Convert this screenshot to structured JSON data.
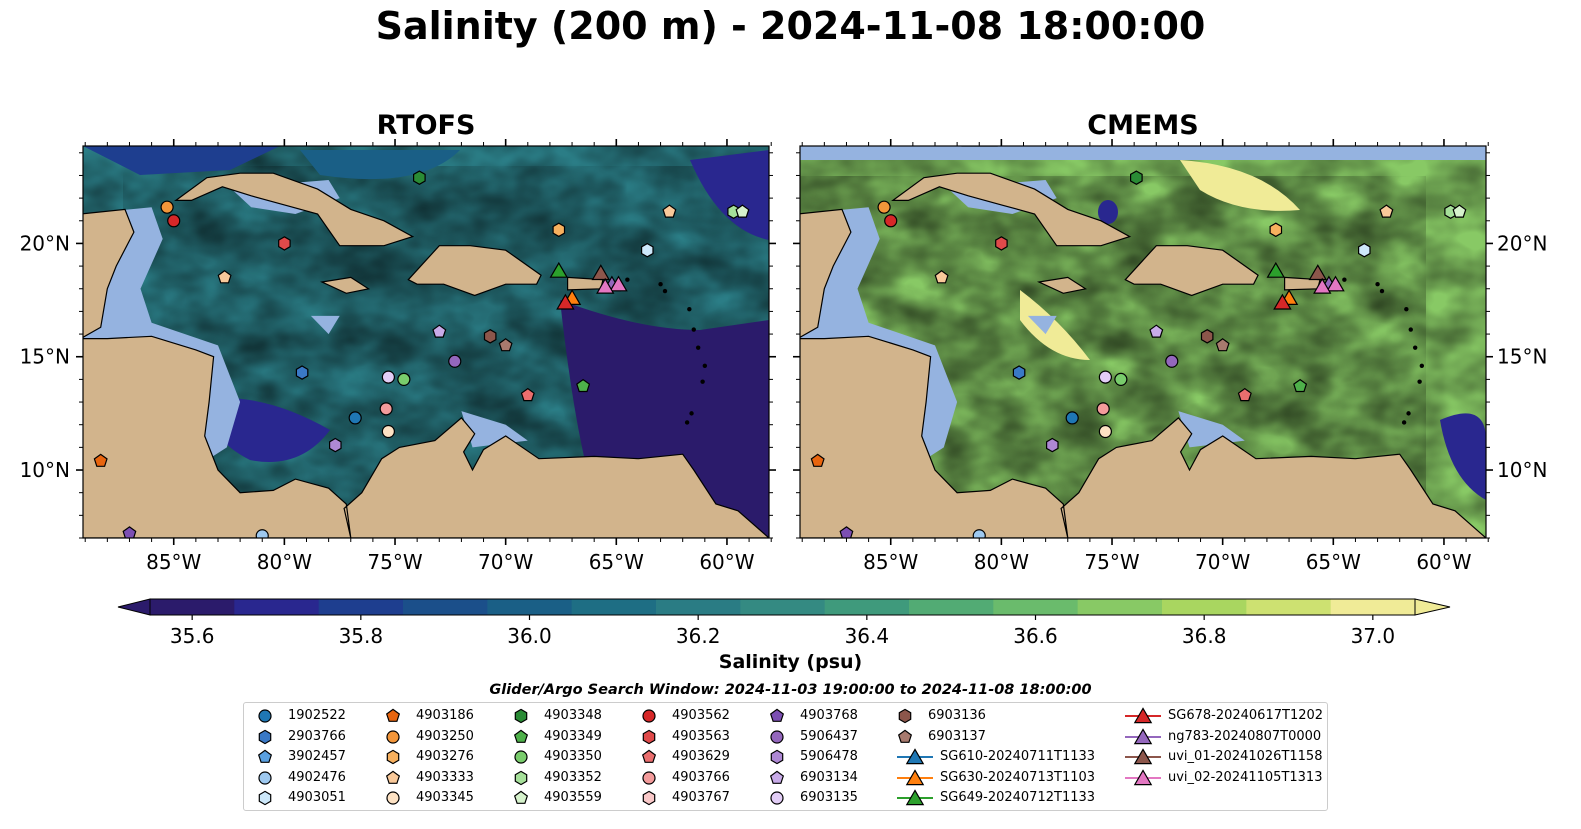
{
  "figure": {
    "title": "Salinity (200 m) - 2024-11-08 18:00:00",
    "panels": [
      {
        "title": "RTOFS"
      },
      {
        "title": "CMEMS"
      }
    ],
    "lon_labels": [
      "85°W",
      "80°W",
      "75°W",
      "70°W",
      "65°W",
      "60°W"
    ],
    "lat_labels": [
      "20°N",
      "15°N",
      "10°N"
    ],
    "colorbar": {
      "label": "Salinity (psu)",
      "ticks": [
        "35.6",
        "35.8",
        "36.0",
        "36.2",
        "36.4",
        "36.6",
        "36.8",
        "37.0"
      ],
      "range": [
        35.55,
        37.05
      ],
      "colormap": "summer-like deep blue → teal → green → yellow",
      "colors": [
        "#2b1b6b",
        "#29278f",
        "#1e3e8f",
        "#1b4f8a",
        "#1a5f86",
        "#1e6e84",
        "#2a7c84",
        "#348a82",
        "#3f9a7c",
        "#52ab74",
        "#6abb6c",
        "#88c965",
        "#a9d660",
        "#cde171",
        "#f0eb97"
      ]
    },
    "search_window": "Glider/Argo Search Window: 2024-11-03 19:00:00 to 2024-11-08 18:00:00"
  },
  "map_colors": {
    "land": "#d2b48c",
    "shelf": "#95b3e0",
    "deep_low": "#2b1b6b"
  },
  "legend": {
    "items": [
      {
        "label": "1902522",
        "marker": "circle",
        "color": "#1f77b4"
      },
      {
        "label": "2903766",
        "marker": "hexagon",
        "color": "#3a79c6"
      },
      {
        "label": "3902457",
        "marker": "pentagon",
        "color": "#5aa0e0"
      },
      {
        "label": "4902476",
        "marker": "circle",
        "color": "#9ec9f0"
      },
      {
        "label": "4903051",
        "marker": "hexagon",
        "color": "#cde8fa"
      },
      {
        "label": "4903186",
        "marker": "pentagon",
        "color": "#e8650f"
      },
      {
        "label": "4903250",
        "marker": "circle",
        "color": "#f3963a"
      },
      {
        "label": "4903276",
        "marker": "hexagon",
        "color": "#f7b05e"
      },
      {
        "label": "4903333",
        "marker": "pentagon",
        "color": "#f9c99a"
      },
      {
        "label": "4903345",
        "marker": "circle",
        "color": "#fde2c4"
      },
      {
        "label": "4903348",
        "marker": "hexagon",
        "color": "#2a8b35"
      },
      {
        "label": "4903349",
        "marker": "pentagon",
        "color": "#4eb04a"
      },
      {
        "label": "4903350",
        "marker": "circle",
        "color": "#79cc6c"
      },
      {
        "label": "4903352",
        "marker": "hexagon",
        "color": "#a6e09a"
      },
      {
        "label": "4903559",
        "marker": "pentagon",
        "color": "#d6f2cc"
      },
      {
        "label": "4903562",
        "marker": "circle",
        "color": "#d62728"
      },
      {
        "label": "4903563",
        "marker": "hexagon",
        "color": "#e04a4a"
      },
      {
        "label": "4903629",
        "marker": "pentagon",
        "color": "#ea6e6e"
      },
      {
        "label": "4903766",
        "marker": "circle",
        "color": "#f39b9b"
      },
      {
        "label": "4903767",
        "marker": "hexagon",
        "color": "#f9c8c8"
      },
      {
        "label": "4903768",
        "marker": "pentagon",
        "color": "#7c4fb3"
      },
      {
        "label": "5906437",
        "marker": "circle",
        "color": "#9467bd"
      },
      {
        "label": "5906478",
        "marker": "hexagon",
        "color": "#ae88d4"
      },
      {
        "label": "6903134",
        "marker": "pentagon",
        "color": "#c8abe8"
      },
      {
        "label": "6903135",
        "marker": "circle",
        "color": "#e2cdf6"
      },
      {
        "label": "6903136",
        "marker": "hexagon",
        "color": "#8c564b"
      },
      {
        "label": "6903137",
        "marker": "pentagon",
        "color": "#a87a6e"
      },
      {
        "label": "SG610-20240711T1133",
        "marker": "triangle-line",
        "color": "#1f77b4"
      },
      {
        "label": "SG630-20240713T1103",
        "marker": "triangle-line",
        "color": "#ff7f0e"
      },
      {
        "label": "SG649-20240712T1133",
        "marker": "triangle-line",
        "color": "#2ca02c"
      },
      {
        "label": "SG678-20240617T1202",
        "marker": "triangle-line",
        "color": "#d62728"
      },
      {
        "label": "ng783-20240807T0000",
        "marker": "triangle-line",
        "color": "#9467bd"
      },
      {
        "label": "uvi_01-20241026T1158",
        "marker": "triangle-line",
        "color": "#8c564b"
      },
      {
        "label": "uvi_02-20241105T1313",
        "marker": "triangle-line",
        "color": "#e377c2"
      }
    ]
  },
  "observations": [
    {
      "id": "4903186",
      "lon": -88.3,
      "lat": 10.4
    },
    {
      "id": "4903250",
      "lon": -85.3,
      "lat": 21.6
    },
    {
      "id": "4903562",
      "lon": -85.0,
      "lat": 21.0
    },
    {
      "id": "4903333",
      "lon": -82.7,
      "lat": 18.5
    },
    {
      "id": "4903563",
      "lon": -80.0,
      "lat": 20.0
    },
    {
      "id": "4903348",
      "lon": -73.9,
      "lat": 22.9
    },
    {
      "id": "4903276",
      "lon": -67.6,
      "lat": 20.6
    },
    {
      "id": "6903134",
      "lon": -73.0,
      "lat": 16.1
    },
    {
      "id": "6903136",
      "lon": -70.7,
      "lat": 15.9
    },
    {
      "id": "6903137",
      "lon": -70.0,
      "lat": 15.5
    },
    {
      "id": "5906437",
      "lon": -72.3,
      "lat": 14.8
    },
    {
      "id": "2903766",
      "lon": -79.2,
      "lat": 14.3
    },
    {
      "id": "6903135",
      "lon": -75.3,
      "lat": 14.1
    },
    {
      "id": "4903350",
      "lon": -74.6,
      "lat": 14.0
    },
    {
      "id": "4903766",
      "lon": -75.4,
      "lat": 12.7
    },
    {
      "id": "4903345",
      "lon": -75.3,
      "lat": 11.7
    },
    {
      "id": "1902522",
      "lon": -76.8,
      "lat": 12.3
    },
    {
      "id": "5906478",
      "lon": -77.7,
      "lat": 11.1
    },
    {
      "id": "4903629",
      "lon": -69.0,
      "lat": 13.3
    },
    {
      "id": "4903349",
      "lon": -66.5,
      "lat": 13.7
    },
    {
      "id": "4903333",
      "lon": -62.6,
      "lat": 21.4
    },
    {
      "id": "4903051",
      "lon": -63.6,
      "lat": 19.7
    },
    {
      "id": "4903352",
      "lon": -59.7,
      "lat": 21.4
    },
    {
      "id": "4903559",
      "lon": -59.3,
      "lat": 21.4
    },
    {
      "id": "4903768",
      "lon": -87.0,
      "lat": 7.2
    },
    {
      "id": "4902476",
      "lon": -81.0,
      "lat": 7.1
    }
  ],
  "gliders": [
    {
      "id": "SG649-20240712T1133",
      "lon": -67.6,
      "lat": 18.8
    },
    {
      "id": "SG630-20240713T1103",
      "lon": -67.0,
      "lat": 17.6
    },
    {
      "id": "SG678-20240617T1202",
      "lon": -67.3,
      "lat": 17.4
    },
    {
      "id": "uvi_01-20241026T1158",
      "lon": -65.7,
      "lat": 18.7
    },
    {
      "id": "ng783-20240807T0000",
      "lon": -65.2,
      "lat": 18.2
    },
    {
      "id": "uvi_02-20241105T1313",
      "lon": -64.9,
      "lat": 18.2
    },
    {
      "id": "uvi_02-20241105T1313",
      "lon": -65.5,
      "lat": 18.1
    }
  ]
}
